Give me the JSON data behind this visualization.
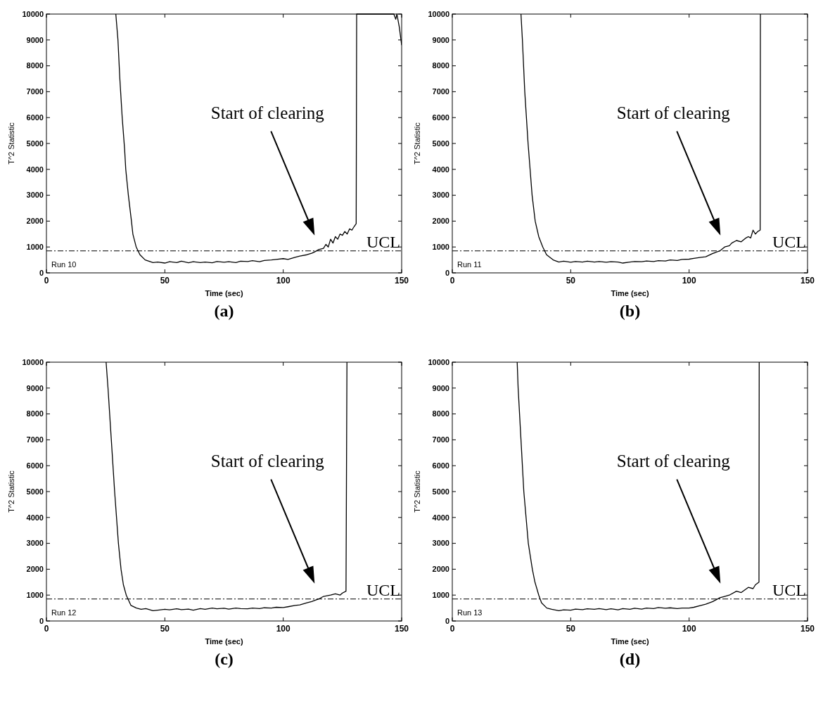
{
  "chart_data": [
    {
      "type": "line",
      "title": "(a)",
      "xlabel": "Time (sec)",
      "ylabel": "T^2 Statistic",
      "xlim": [
        0,
        150
      ],
      "ylim": [
        0,
        10000
      ],
      "xticks": [
        0,
        50,
        100,
        150
      ],
      "yticks": [
        0,
        1000,
        2000,
        3000,
        4000,
        5000,
        6000,
        7000,
        8000,
        9000,
        10000
      ],
      "series": [
        {
          "color": "#000000",
          "x": [
            29.3,
            30.2,
            31,
            32,
            33,
            33.5,
            34.6,
            35.9,
            36.5,
            37.9,
            39.5,
            41.7,
            45,
            47,
            50,
            52,
            55,
            57,
            60,
            62,
            65,
            67,
            70,
            72,
            75,
            77,
            80,
            82,
            85,
            87,
            90,
            92,
            95,
            97,
            100,
            102,
            105,
            107,
            110,
            112,
            113,
            115,
            117,
            118,
            119,
            120,
            121,
            122,
            123,
            124,
            125,
            126,
            127,
            128,
            129,
            130,
            130.8,
            131,
            135,
            140,
            146.7,
            147.5,
            148,
            149,
            150
          ],
          "values": [
            10000,
            9000,
            7500,
            6000,
            4800,
            4000,
            3000,
            2000,
            1500,
            1000,
            700,
            500,
            400,
            420,
            380,
            430,
            400,
            450,
            390,
            430,
            400,
            420,
            390,
            440,
            410,
            430,
            400,
            450,
            440,
            470,
            430,
            480,
            500,
            520,
            550,
            520,
            600,
            650,
            700,
            760,
            800,
            900,
            950,
            1100,
            1000,
            1300,
            1150,
            1400,
            1300,
            1500,
            1450,
            1600,
            1500,
            1700,
            1650,
            1800,
            1900,
            10000,
            10000,
            10000,
            10000,
            9800,
            10000,
            9500,
            8800
          ]
        }
      ],
      "ref_lines": [
        {
          "axis": "y",
          "value": 850,
          "label": "UCL",
          "line_style": "dashdot"
        }
      ],
      "annotations": [
        "Start of clearing",
        "Run 10"
      ]
    },
    {
      "type": "line",
      "title": "(b)",
      "xlabel": "Time (sec)",
      "ylabel": "T^2 Statistic",
      "xlim": [
        0,
        150
      ],
      "ylim": [
        0,
        10000
      ],
      "xticks": [
        0,
        50,
        100,
        150
      ],
      "yticks": [
        0,
        1000,
        2000,
        3000,
        4000,
        5000,
        6000,
        7000,
        8000,
        9000,
        10000
      ],
      "series": [
        {
          "color": "#000000",
          "x": [
            29,
            29.6,
            30.6,
            32,
            33.7,
            35,
            36.5,
            38.2,
            39.8,
            42.6,
            45,
            47,
            50,
            52,
            55,
            57,
            60,
            62,
            65,
            67,
            70,
            72,
            75,
            77,
            80,
            82,
            85,
            87,
            90,
            92,
            95,
            97,
            100,
            102,
            105,
            107,
            110,
            113,
            115,
            117,
            118,
            120,
            122,
            124,
            125,
            126,
            127,
            128,
            129,
            130,
            130.1
          ],
          "values": [
            10000,
            9000,
            7000,
            5000,
            3000,
            2000,
            1400,
            1000,
            700,
            500,
            420,
            450,
            410,
            440,
            420,
            450,
            420,
            440,
            410,
            430,
            420,
            380,
            420,
            440,
            430,
            460,
            440,
            470,
            460,
            500,
            480,
            520,
            530,
            560,
            600,
            620,
            750,
            850,
            1000,
            1050,
            1150,
            1250,
            1200,
            1350,
            1400,
            1350,
            1650,
            1500,
            1600,
            1650,
            10000
          ]
        }
      ],
      "ref_lines": [
        {
          "axis": "y",
          "value": 850,
          "label": "UCL",
          "line_style": "dashdot"
        }
      ],
      "annotations": [
        "Start of clearing",
        "Run 11"
      ]
    },
    {
      "type": "line",
      "title": "(c)",
      "xlabel": "Time (sec)",
      "ylabel": "T^2 Statistic",
      "xlim": [
        0,
        150
      ],
      "ylim": [
        0,
        10000
      ],
      "xticks": [
        0,
        50,
        100,
        150
      ],
      "yticks": [
        0,
        1000,
        2000,
        3000,
        4000,
        5000,
        6000,
        7000,
        8000,
        9000,
        10000
      ],
      "series": [
        {
          "color": "#000000",
          "x": [
            25.2,
            26,
            27.4,
            28.8,
            30.4,
            31.5,
            32.5,
            33.7,
            35.7,
            38,
            40,
            42,
            45,
            47,
            50,
            52,
            55,
            57,
            60,
            62,
            65,
            67,
            70,
            72,
            75,
            77,
            80,
            82,
            85,
            87,
            90,
            92,
            95,
            97,
            100,
            102,
            105,
            107,
            110,
            112,
            115,
            117,
            120,
            122,
            124,
            125,
            126.5,
            126.9
          ],
          "values": [
            10000,
            9000,
            7000,
            5000,
            3000,
            2000,
            1400,
            1000,
            600,
            500,
            450,
            480,
            400,
            420,
            450,
            430,
            470,
            440,
            460,
            420,
            480,
            450,
            500,
            470,
            490,
            460,
            500,
            480,
            470,
            500,
            480,
            510,
            500,
            530,
            520,
            550,
            600,
            620,
            700,
            750,
            850,
            950,
            1000,
            1050,
            1000,
            1080,
            1150,
            10000
          ]
        }
      ],
      "ref_lines": [
        {
          "axis": "y",
          "value": 850,
          "label": "UCL",
          "line_style": "dashdot"
        }
      ],
      "annotations": [
        "Start of clearing",
        "Run 12"
      ]
    },
    {
      "type": "line",
      "title": "(d)",
      "xlabel": "Time (sec)",
      "ylabel": "T^2 Statistic",
      "xlim": [
        0,
        150
      ],
      "ylim": [
        0,
        10000
      ],
      "xticks": [
        0,
        50,
        100,
        150
      ],
      "yticks": [
        0,
        1000,
        2000,
        3000,
        4000,
        5000,
        6000,
        7000,
        8000,
        9000,
        10000
      ],
      "series": [
        {
          "color": "#000000",
          "x": [
            27.4,
            27.8,
            29,
            30.2,
            32.1,
            33.8,
            34.9,
            36.5,
            37.7,
            39.9,
            42,
            45,
            47,
            50,
            52,
            55,
            57,
            60,
            62,
            65,
            67,
            70,
            72,
            75,
            77,
            80,
            82,
            85,
            87,
            90,
            92,
            95,
            97,
            100,
            102,
            105,
            107,
            110,
            113,
            115,
            117,
            120,
            122,
            125,
            127,
            128,
            129.5,
            129.6
          ],
          "values": [
            10000,
            9000,
            7000,
            5000,
            3000,
            2000,
            1500,
            1000,
            700,
            500,
            450,
            400,
            430,
            420,
            460,
            440,
            470,
            450,
            480,
            440,
            470,
            430,
            480,
            450,
            490,
            460,
            500,
            480,
            520,
            490,
            510,
            480,
            500,
            500,
            530,
            600,
            650,
            750,
            900,
            950,
            1000,
            1150,
            1100,
            1300,
            1250,
            1400,
            1500,
            10000
          ]
        }
      ],
      "ref_lines": [
        {
          "axis": "y",
          "value": 850,
          "label": "UCL",
          "line_style": "dashdot"
        }
      ],
      "annotations": [
        "Start of clearing",
        "Run 13"
      ]
    }
  ]
}
